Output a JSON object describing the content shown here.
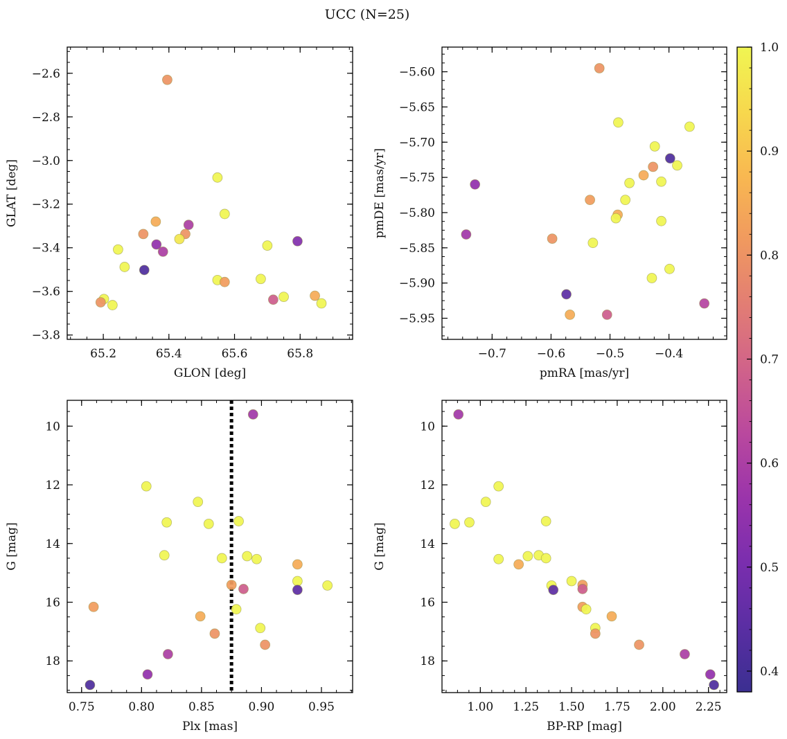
{
  "title": "UCC (N=25)",
  "colorbar": {
    "range": [
      0.38,
      1.0
    ],
    "ticks": [
      0.4,
      0.5,
      0.6,
      0.7,
      0.8,
      0.9,
      1.0
    ],
    "tick_labels": [
      "0.4",
      "0.5",
      "0.6",
      "0.7",
      "0.8",
      "0.9",
      "1.0"
    ],
    "colormap": "plasma"
  },
  "chart_data": [
    {
      "type": "scatter",
      "xlabel": "GLON [deg]",
      "ylabel": "GLAT [deg]",
      "xlim": [
        65.09,
        65.96
      ],
      "ylim": [
        -3.82,
        -2.48
      ],
      "y_inverted": false,
      "xticks": [
        65.2,
        65.4,
        65.6,
        65.8
      ],
      "xtick_labels": [
        "65.2",
        "65.4",
        "65.6",
        "65.8"
      ],
      "yticks": [
        -3.8,
        -3.6,
        -3.4,
        -3.2,
        -3.0,
        -2.8,
        -2.6
      ],
      "ytick_labels": [
        "−3.8",
        "−3.6",
        "−3.4",
        "−3.2",
        "−3.0",
        "−2.8",
        "−2.6"
      ],
      "points": [
        {
          "x": 65.395,
          "y": -2.63,
          "c": 0.8
        },
        {
          "x": 65.548,
          "y": -3.078,
          "c": 1.0
        },
        {
          "x": 65.57,
          "y": -3.245,
          "c": 1.0
        },
        {
          "x": 65.36,
          "y": -3.28,
          "c": 0.85
        },
        {
          "x": 65.46,
          "y": -3.295,
          "c": 0.6
        },
        {
          "x": 65.322,
          "y": -3.337,
          "c": 0.8
        },
        {
          "x": 65.45,
          "y": -3.337,
          "c": 0.8
        },
        {
          "x": 65.432,
          "y": -3.36,
          "c": 0.97
        },
        {
          "x": 65.792,
          "y": -3.37,
          "c": 0.52
        },
        {
          "x": 65.362,
          "y": -3.385,
          "c": 0.55
        },
        {
          "x": 65.7,
          "y": -3.39,
          "c": 1.0
        },
        {
          "x": 65.245,
          "y": -3.408,
          "c": 1.0
        },
        {
          "x": 65.382,
          "y": -3.418,
          "c": 0.6
        },
        {
          "x": 65.265,
          "y": -3.488,
          "c": 1.0
        },
        {
          "x": 65.325,
          "y": -3.502,
          "c": 0.42
        },
        {
          "x": 65.68,
          "y": -3.543,
          "c": 1.0
        },
        {
          "x": 65.548,
          "y": -3.548,
          "c": 1.0
        },
        {
          "x": 65.57,
          "y": -3.557,
          "c": 0.82
        },
        {
          "x": 65.845,
          "y": -3.62,
          "c": 0.85
        },
        {
          "x": 65.75,
          "y": -3.625,
          "c": 1.0
        },
        {
          "x": 65.202,
          "y": -3.635,
          "c": 1.0
        },
        {
          "x": 65.718,
          "y": -3.638,
          "c": 0.68
        },
        {
          "x": 65.192,
          "y": -3.65,
          "c": 0.8
        },
        {
          "x": 65.865,
          "y": -3.655,
          "c": 1.0
        },
        {
          "x": 65.228,
          "y": -3.663,
          "c": 1.0
        }
      ]
    },
    {
      "type": "scatter",
      "xlabel": "pmRA [mas/yr]",
      "ylabel": "pmDE [mas/yr]",
      "xlim": [
        -0.785,
        -0.302
      ],
      "ylim": [
        -5.98,
        -5.565
      ],
      "y_inverted": false,
      "xticks": [
        -0.7,
        -0.6,
        -0.5,
        -0.4
      ],
      "xtick_labels": [
        "−0.7",
        "−0.6",
        "−0.5",
        "−0.4"
      ],
      "yticks": [
        -5.95,
        -5.9,
        -5.85,
        -5.8,
        -5.75,
        -5.7,
        -5.65,
        -5.6
      ],
      "ytick_labels": [
        "−5.95",
        "−5.90",
        "−5.85",
        "−5.80",
        "−5.75",
        "−5.70",
        "−5.65",
        "−5.60"
      ],
      "points": [
        {
          "x": -0.518,
          "y": -5.595,
          "c": 0.8
        },
        {
          "x": -0.486,
          "y": -5.672,
          "c": 1.0
        },
        {
          "x": -0.365,
          "y": -5.678,
          "c": 1.0
        },
        {
          "x": -0.424,
          "y": -5.706,
          "c": 1.0
        },
        {
          "x": -0.398,
          "y": -5.723,
          "c": 0.42
        },
        {
          "x": -0.386,
          "y": -5.733,
          "c": 1.0
        },
        {
          "x": -0.427,
          "y": -5.735,
          "c": 0.8
        },
        {
          "x": -0.443,
          "y": -5.747,
          "c": 0.85
        },
        {
          "x": -0.413,
          "y": -5.756,
          "c": 1.0
        },
        {
          "x": -0.467,
          "y": -5.758,
          "c": 1.0
        },
        {
          "x": -0.729,
          "y": -5.76,
          "c": 0.55
        },
        {
          "x": -0.534,
          "y": -5.782,
          "c": 0.82
        },
        {
          "x": -0.474,
          "y": -5.782,
          "c": 1.0
        },
        {
          "x": -0.487,
          "y": -5.803,
          "c": 0.85
        },
        {
          "x": -0.49,
          "y": -5.808,
          "c": 1.0
        },
        {
          "x": -0.413,
          "y": -5.812,
          "c": 1.0
        },
        {
          "x": -0.744,
          "y": -5.831,
          "c": 0.58
        },
        {
          "x": -0.598,
          "y": -5.837,
          "c": 0.8
        },
        {
          "x": -0.529,
          "y": -5.843,
          "c": 1.0
        },
        {
          "x": -0.399,
          "y": -5.88,
          "c": 1.0
        },
        {
          "x": -0.429,
          "y": -5.893,
          "c": 1.0
        },
        {
          "x": -0.574,
          "y": -5.916,
          "c": 0.45
        },
        {
          "x": -0.34,
          "y": -5.929,
          "c": 0.62
        },
        {
          "x": -0.568,
          "y": -5.945,
          "c": 0.85
        },
        {
          "x": -0.505,
          "y": -5.945,
          "c": 0.68
        }
      ]
    },
    {
      "type": "scatter",
      "xlabel": "Plx [mas]",
      "ylabel": "G [mag]",
      "xlim": [
        0.738,
        0.976
      ],
      "ylim": [
        19.08,
        9.12
      ],
      "y_inverted": true,
      "xticks": [
        0.75,
        0.8,
        0.85,
        0.9,
        0.95
      ],
      "xtick_labels": [
        "0.75",
        "0.80",
        "0.85",
        "0.90",
        "0.95"
      ],
      "yticks": [
        10,
        12,
        14,
        16,
        18
      ],
      "ytick_labels": [
        "10",
        "12",
        "14",
        "16",
        "18"
      ],
      "vline": {
        "x": 0.875,
        "style": "dotted"
      },
      "points": [
        {
          "x": 0.893,
          "y": 9.6,
          "c": 0.58
        },
        {
          "x": 0.804,
          "y": 12.05,
          "c": 1.0
        },
        {
          "x": 0.847,
          "y": 12.58,
          "c": 1.0
        },
        {
          "x": 0.881,
          "y": 13.24,
          "c": 1.0
        },
        {
          "x": 0.821,
          "y": 13.28,
          "c": 1.0
        },
        {
          "x": 0.856,
          "y": 13.33,
          "c": 1.0
        },
        {
          "x": 0.819,
          "y": 14.4,
          "c": 1.0
        },
        {
          "x": 0.888,
          "y": 14.43,
          "c": 1.0
        },
        {
          "x": 0.867,
          "y": 14.5,
          "c": 1.0
        },
        {
          "x": 0.896,
          "y": 14.53,
          "c": 1.0
        },
        {
          "x": 0.93,
          "y": 14.71,
          "c": 0.85
        },
        {
          "x": 0.93,
          "y": 15.28,
          "c": 1.0
        },
        {
          "x": 0.875,
          "y": 15.41,
          "c": 0.82
        },
        {
          "x": 0.955,
          "y": 15.43,
          "c": 1.0
        },
        {
          "x": 0.885,
          "y": 15.55,
          "c": 0.68
        },
        {
          "x": 0.93,
          "y": 15.58,
          "c": 0.45
        },
        {
          "x": 0.76,
          "y": 16.16,
          "c": 0.82
        },
        {
          "x": 0.879,
          "y": 16.24,
          "c": 1.0
        },
        {
          "x": 0.849,
          "y": 16.48,
          "c": 0.85
        },
        {
          "x": 0.899,
          "y": 16.88,
          "c": 1.0
        },
        {
          "x": 0.861,
          "y": 17.07,
          "c": 0.8
        },
        {
          "x": 0.903,
          "y": 17.45,
          "c": 0.8
        },
        {
          "x": 0.822,
          "y": 17.77,
          "c": 0.6
        },
        {
          "x": 0.805,
          "y": 18.46,
          "c": 0.55
        },
        {
          "x": 0.757,
          "y": 18.82,
          "c": 0.42
        }
      ]
    },
    {
      "type": "scatter",
      "xlabel": "BP-RP [mag]",
      "ylabel": "G [mag]",
      "xlim": [
        0.79,
        2.35
      ],
      "ylim": [
        19.08,
        9.12
      ],
      "y_inverted": true,
      "xticks": [
        1.0,
        1.25,
        1.5,
        1.75,
        2.0,
        2.25
      ],
      "xtick_labels": [
        "1.00",
        "1.25",
        "1.50",
        "1.75",
        "2.00",
        "2.25"
      ],
      "yticks": [
        10,
        12,
        14,
        16,
        18
      ],
      "ytick_labels": [
        "10",
        "12",
        "14",
        "16",
        "18"
      ],
      "points": [
        {
          "x": 0.88,
          "y": 9.6,
          "c": 0.58
        },
        {
          "x": 1.1,
          "y": 12.05,
          "c": 1.0
        },
        {
          "x": 1.03,
          "y": 12.58,
          "c": 1.0
        },
        {
          "x": 1.36,
          "y": 13.24,
          "c": 1.0
        },
        {
          "x": 0.94,
          "y": 13.28,
          "c": 1.0
        },
        {
          "x": 0.86,
          "y": 13.33,
          "c": 1.0
        },
        {
          "x": 1.32,
          "y": 14.4,
          "c": 1.0
        },
        {
          "x": 1.26,
          "y": 14.43,
          "c": 1.0
        },
        {
          "x": 1.36,
          "y": 14.5,
          "c": 1.0
        },
        {
          "x": 1.1,
          "y": 14.53,
          "c": 1.0
        },
        {
          "x": 1.21,
          "y": 14.71,
          "c": 0.85
        },
        {
          "x": 1.5,
          "y": 15.28,
          "c": 1.0
        },
        {
          "x": 1.56,
          "y": 15.41,
          "c": 0.82
        },
        {
          "x": 1.39,
          "y": 15.43,
          "c": 1.0
        },
        {
          "x": 1.56,
          "y": 15.55,
          "c": 0.68
        },
        {
          "x": 1.4,
          "y": 15.58,
          "c": 0.45
        },
        {
          "x": 1.56,
          "y": 16.16,
          "c": 0.82
        },
        {
          "x": 1.58,
          "y": 16.24,
          "c": 1.0
        },
        {
          "x": 1.72,
          "y": 16.48,
          "c": 0.85
        },
        {
          "x": 1.63,
          "y": 16.88,
          "c": 1.0
        },
        {
          "x": 1.63,
          "y": 17.07,
          "c": 0.8
        },
        {
          "x": 1.87,
          "y": 17.45,
          "c": 0.8
        },
        {
          "x": 2.12,
          "y": 17.77,
          "c": 0.6
        },
        {
          "x": 2.26,
          "y": 18.46,
          "c": 0.55
        },
        {
          "x": 2.28,
          "y": 18.82,
          "c": 0.42
        }
      ]
    }
  ]
}
